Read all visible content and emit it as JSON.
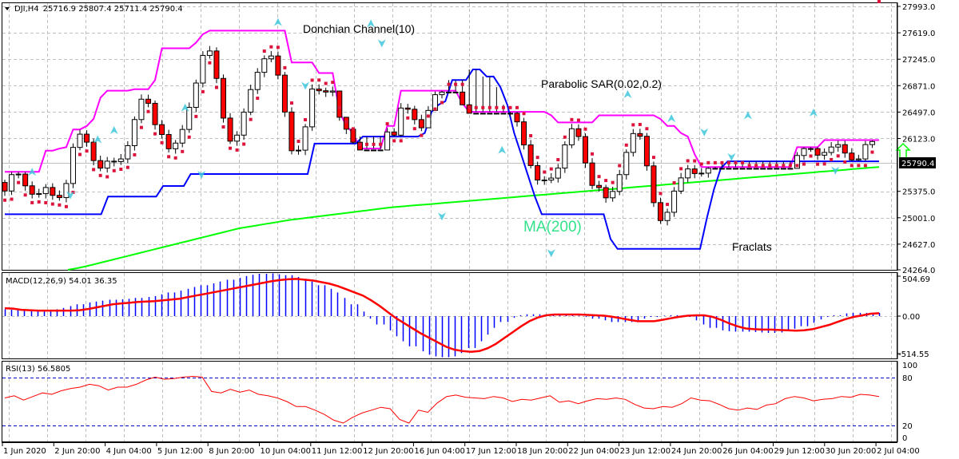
{
  "header": {
    "symbol_timeframe": "DJI,H4",
    "ohlc": "25716.9 25807.4 25711.4 25790.4"
  },
  "colors": {
    "background": "#ffffff",
    "grid": "#c0c0c0",
    "frame": "#000000",
    "donchian_upper": "#ff00ff",
    "donchian_lower": "#0000ff",
    "sar": "#dc143c",
    "ma200": "#00ff00",
    "ma_label": "#33e28a",
    "fractal": "#40c8dc",
    "bull_candle_fill": "#ffffff",
    "bear_candle_fill": "#ff0000",
    "macd_hist": "#0000ff",
    "macd_signal": "#ff0000",
    "rsi_line": "#ff0000",
    "rsi_levels": "#0000cd",
    "current_price_bg": "#000000",
    "up_arrow": "#00ff00"
  },
  "annotations": {
    "donchian": "Donchian Channel(10)",
    "sar": "Parabolic SAR(0.02,0.2)",
    "ma": "MA(200)",
    "fractals": "Fraclats"
  },
  "price_axis": {
    "labels": [
      "27993.0",
      "27619.0",
      "27245.0",
      "26871.0",
      "26497.0",
      "26123.0",
      "25375.0",
      "25001.0",
      "24627.0",
      "24264.0"
    ],
    "current_price": "25790.4"
  },
  "macd": {
    "title": "MACD(12,26,9) 54.01 36.35",
    "axis_labels": [
      "504.69",
      "0.00",
      "-514.55"
    ]
  },
  "rsi": {
    "title": "RSI(13) 56.5805",
    "axis_labels": [
      "100",
      "80",
      "20",
      "0"
    ]
  },
  "time_axis": {
    "labels": [
      "1 Jun 2020",
      "2 Jun 20:00",
      "4 Jun 04:00",
      "5 Jun 12:00",
      "8 Jun 20:00",
      "10 Jun 04:00",
      "11 Jun 12:00",
      "12 Jun 20:00",
      "16 Jun 04:00",
      "17 Jun 12:00",
      "18 Jun 20:00",
      "22 Jun 04:00",
      "23 Jun 12:00",
      "24 Jun 20:00",
      "26 Jun 04:00",
      "29 Jun 12:00",
      "30 Jun 20:00",
      "2 Jul 04:00"
    ]
  },
  "chart_data": [
    {
      "type": "candlestick",
      "title": "DJI,H4",
      "subtitle": "25716.9 25807.4 25711.4 25790.4",
      "xlabel": "",
      "ylabel": "",
      "ylim": [
        24264.0,
        27993.0
      ],
      "grid": true,
      "x_tick_labels": [
        "1 Jun 2020",
        "2 Jun 20:00",
        "4 Jun 04:00",
        "5 Jun 12:00",
        "8 Jun 20:00",
        "10 Jun 04:00",
        "11 Jun 12:00",
        "12 Jun 20:00",
        "16 Jun 04:00",
        "17 Jun 12:00",
        "18 Jun 20:00",
        "22 Jun 04:00",
        "23 Jun 12:00",
        "24 Jun 20:00",
        "26 Jun 04:00",
        "29 Jun 12:00",
        "30 Jun 20:00",
        "2 Jul 04:00"
      ],
      "y_tick_labels": [
        "27993.0",
        "27619.0",
        "27245.0",
        "26871.0",
        "26497.0",
        "26123.0",
        "25375.0",
        "25001.0",
        "24627.0",
        "24264.0"
      ],
      "last_bar": {
        "open": 25716.9,
        "high": 25807.4,
        "low": 25711.4,
        "close": 25790.4
      },
      "series": [
        {
          "name": "Donchian Upper (10)",
          "values": [
            25650,
            25650,
            25650,
            25650,
            25650,
            25650,
            25950,
            25950,
            25980,
            26000,
            26250,
            26250,
            26300,
            26400,
            26700,
            26800,
            26800,
            26800,
            26800,
            26820,
            26820,
            26820,
            26950,
            27400,
            27400,
            27400,
            27400,
            27400,
            27480,
            27600,
            27650,
            27650,
            27650,
            27650,
            27650,
            27650,
            27650,
            27650,
            27650,
            27650,
            27650,
            27650,
            27200,
            27200,
            27200,
            27200,
            27050,
            27050,
            27050,
            26500,
            26300,
            26200,
            25980,
            25980,
            25980,
            25980,
            26300,
            26300,
            26800,
            26800,
            26800,
            26800,
            26800,
            26800,
            26800,
            26800,
            26800,
            26620,
            26500,
            26500,
            26500,
            26500,
            26500,
            26500,
            26500,
            26500,
            26500,
            26500,
            26500,
            26500,
            26450,
            26350,
            26350,
            26350,
            26350,
            26350,
            26350,
            26450,
            26450,
            26450,
            26450,
            26450,
            26450,
            26450,
            26450,
            26450,
            26400,
            26300,
            26300,
            26200,
            26150,
            25900,
            25720,
            25720,
            25720,
            25720,
            25720,
            25720,
            25720,
            25720,
            25720,
            25720,
            25720,
            25720,
            25720,
            25720,
            26000,
            26000,
            26000,
            26000,
            26100,
            26100,
            26100,
            26100,
            26100,
            26100,
            26100,
            26100,
            26100
          ]
        },
        {
          "name": "Donchian Lower (10)",
          "values": [
            25050,
            25050,
            25050,
            25050,
            25050,
            25050,
            25050,
            25050,
            25050,
            25050,
            25050,
            25050,
            25050,
            25050,
            25050,
            25300,
            25300,
            25300,
            25300,
            25300,
            25300,
            25300,
            25300,
            25450,
            25450,
            25450,
            25450,
            25620,
            25620,
            25620,
            25620,
            25620,
            25620,
            25620,
            25620,
            25620,
            25620,
            25620,
            25620,
            25620,
            25620,
            25620,
            25620,
            25620,
            25620,
            26050,
            26050,
            26050,
            26050,
            26050,
            26050,
            26050,
            26150,
            26150,
            26150,
            26150,
            26150,
            26150,
            26150,
            26150,
            26150,
            26200,
            26500,
            26600,
            26650,
            26950,
            26950,
            26950,
            27100,
            27100,
            27000,
            27000,
            26850,
            26600,
            26200,
            25900,
            25600,
            25300,
            25050,
            25050,
            25050,
            25050,
            25050,
            25050,
            25050,
            25050,
            25050,
            25050,
            24700,
            24560,
            24560,
            24560,
            24560,
            24560,
            24560,
            24560,
            24560,
            24560,
            24560,
            24560,
            24560,
            24560,
            25000,
            25400,
            25700,
            25800,
            25800,
            25800,
            25800,
            25800,
            25800,
            25800,
            25800,
            25800,
            25800,
            25800,
            25800,
            25800,
            25800,
            25800,
            25800,
            25800,
            25800,
            25800,
            25800,
            25800,
            25800,
            25800
          ]
        },
        {
          "name": "MA(200)",
          "values": [
            24264,
            24285,
            24310,
            24340,
            24370,
            24400,
            24430,
            24460,
            24490,
            24520,
            24550,
            24580,
            24610,
            24640,
            24670,
            24700,
            24730,
            24760,
            24790,
            24820,
            24850,
            24870,
            24890,
            24910,
            24930,
            24950,
            24970,
            24985,
            25000,
            25015,
            25030,
            25045,
            25060,
            25075,
            25090,
            25105,
            25120,
            25135,
            25150,
            25160,
            25170,
            25180,
            25190,
            25200,
            25210,
            25220,
            25230,
            25240,
            25250,
            25260,
            25270,
            25280,
            25290,
            25300,
            25310,
            25320,
            25330,
            25340,
            25350,
            25360,
            25370,
            25380,
            25390,
            25400,
            25410,
            25420,
            25430,
            25440,
            25450,
            25460,
            25470,
            25480,
            25490,
            25500,
            25510,
            25520,
            25530,
            25540,
            25550,
            25560,
            25570,
            25580,
            25590,
            25600,
            25610,
            25620,
            25630,
            25640,
            25650,
            25660,
            25670,
            25680,
            25690,
            25700,
            25710,
            25720
          ]
        },
        {
          "name": "MACD Signal",
          "values": [
            100,
            95,
            80,
            75,
            70,
            70,
            70,
            70,
            70,
            75,
            90,
            110,
            130,
            150,
            160,
            170,
            180,
            185,
            190,
            200,
            210,
            220,
            240,
            260,
            280,
            300,
            320,
            340,
            360,
            380,
            400,
            420,
            440,
            455,
            465,
            470,
            460,
            450,
            430,
            410,
            380,
            340,
            300,
            260,
            200,
            130,
            50,
            -30,
            -100,
            -170,
            -240,
            -300,
            -360,
            -420,
            -460,
            -480,
            -490,
            -480,
            -440,
            -380,
            -300,
            -220,
            -140,
            -70,
            -20,
            10,
            20,
            20,
            20,
            20,
            15,
            10,
            5,
            -10,
            -30,
            -50,
            -70,
            -70,
            -70,
            -50,
            -30,
            -10,
            5,
            10,
            10,
            -10,
            -50,
            -100,
            -140,
            -170,
            -180,
            -185,
            -185,
            -190,
            -195,
            -200,
            -195,
            -180,
            -150,
            -120,
            -80,
            -40,
            -10,
            10,
            30,
            36
          ]
        },
        {
          "name": "RSI(13)",
          "values": [
            55,
            58,
            52,
            57,
            62,
            60,
            65,
            68,
            70,
            74,
            72,
            66,
            70,
            70,
            74,
            80,
            84,
            81,
            82,
            84,
            85,
            84,
            64,
            62,
            67,
            63,
            66,
            60,
            58,
            55,
            50,
            43,
            43,
            38,
            32,
            24,
            20,
            28,
            34,
            38,
            42,
            40,
            25,
            20,
            38,
            35,
            48,
            57,
            59,
            56,
            55,
            54,
            57,
            55,
            50,
            53,
            52,
            55,
            58,
            49,
            51,
            47,
            51,
            54,
            53,
            55,
            53,
            46,
            41,
            40,
            43,
            42,
            47,
            55,
            52,
            51,
            46,
            40,
            38,
            41,
            39,
            45,
            47,
            54,
            57,
            55,
            51,
            53,
            54,
            57,
            56,
            60,
            59,
            57
          ]
        }
      ],
      "sub_panels": [
        {
          "type": "bar+line",
          "title": "MACD(12,26,9) 54.01 36.35",
          "ylim": [
            -514.55,
            504.69
          ],
          "y_tick_labels": [
            "504.69",
            "0.00",
            "-514.55"
          ]
        },
        {
          "type": "line",
          "title": "RSI(13) 56.5805",
          "ylim": [
            0,
            100
          ],
          "levels": [
            20,
            80
          ],
          "y_tick_labels": [
            "100",
            "80",
            "20",
            "0"
          ]
        }
      ],
      "annotations": [
        "Donchian Channel(10)",
        "Parabolic SAR(0.02,0.2)",
        "MA(200)",
        "Fraclats"
      ]
    }
  ]
}
